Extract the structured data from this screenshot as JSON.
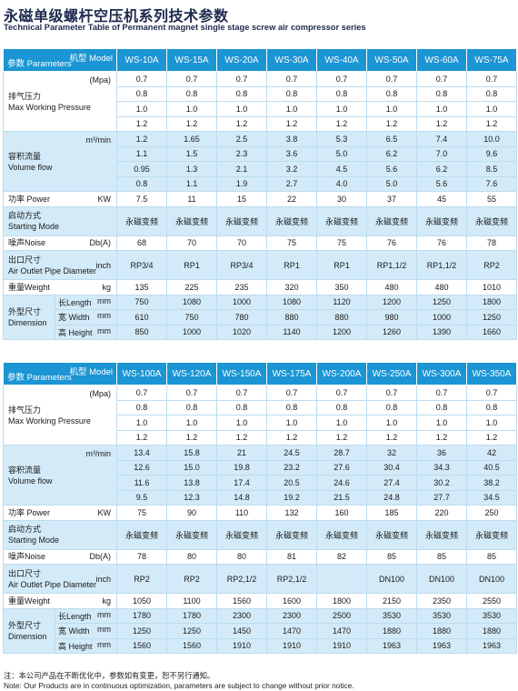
{
  "header": {
    "title": "永磁单级螺杆空压机系列技术参数",
    "subtitle": "Technical Parameter Table of Permanent magnet single stage screw air compressor series"
  },
  "tables": [
    {
      "model_label": "机型 Model",
      "param_label": "参数 Parameters",
      "models": [
        "WS-10A",
        "WS-15A",
        "WS-20A",
        "WS-30A",
        "WS-40A",
        "WS-50A",
        "WS-60A",
        "WS-75A"
      ],
      "groups": [
        {
          "label": [
            "排气压力",
            "Max Working Pressure"
          ],
          "unit": "(Mpa)",
          "rows": [
            [
              "0.7",
              "0.7",
              "0.7",
              "0.7",
              "0.7",
              "0.7",
              "0.7",
              "0.7"
            ],
            [
              "0.8",
              "0.8",
              "0.8",
              "0.8",
              "0.8",
              "0.8",
              "0.8",
              "0.8"
            ],
            [
              "1.0",
              "1.0",
              "1.0",
              "1.0",
              "1.0",
              "1.0",
              "1.0",
              "1.0"
            ],
            [
              "1.2",
              "1.2",
              "1.2",
              "1.2",
              "1.2",
              "1.2",
              "1.2",
              "1.2"
            ]
          ]
        },
        {
          "label": [
            "容积流量",
            "Volume flow"
          ],
          "unit": "m³/min",
          "rows": [
            [
              "1.2",
              "1.65",
              "2.5",
              "3.8",
              "5.3",
              "6.5",
              "7.4",
              "10.0"
            ],
            [
              "1.1",
              "1.5",
              "2.3",
              "3.6",
              "5.0",
              "6.2",
              "7.0",
              "9.6"
            ],
            [
              "0.95",
              "1.3",
              "2.1",
              "3.2",
              "4.5",
              "5.6",
              "6.2",
              "8.5"
            ],
            [
              "0.8",
              "1.1",
              "1.9",
              "2.7",
              "4.0",
              "5.0",
              "5.6",
              "7.6"
            ]
          ]
        },
        {
          "label": [
            "功率 Power"
          ],
          "unit": "KW",
          "rows": [
            [
              "7.5",
              "11",
              "15",
              "22",
              "30",
              "37",
              "45",
              "55"
            ]
          ]
        },
        {
          "label": [
            "启动方式",
            "Starting Mode"
          ],
          "rows": [
            [
              "永磁变频",
              "永磁变频",
              "永磁变频",
              "永磁变频",
              "永磁变频",
              "永磁变频",
              "永磁变频",
              "永磁变频"
            ]
          ]
        },
        {
          "label": [
            "噪声Noise"
          ],
          "unit": "Db(A)",
          "rows": [
            [
              "68",
              "70",
              "70",
              "75",
              "75",
              "76",
              "76",
              "78"
            ]
          ]
        },
        {
          "label": [
            "出口尺寸",
            "Air Outlet Pipe Diameter"
          ],
          "unit": "inch",
          "rows": [
            [
              "RP3/4",
              "RP1",
              "RP3/4",
              "RP1",
              "RP1",
              "RP1,1/2",
              "RP1,1/2",
              "RP2"
            ]
          ]
        },
        {
          "label": [
            "重量Weight"
          ],
          "unit": "kg",
          "rows": [
            [
              "135",
              "225",
              "235",
              "320",
              "350",
              "480",
              "480",
              "1010"
            ]
          ]
        },
        {
          "label": [
            "外型尺寸",
            "Dimension"
          ],
          "sub": [
            {
              "label": "长Length",
              "unit": "mm"
            },
            {
              "label": "宽 Width",
              "unit": "mm"
            },
            {
              "label": "高 Height",
              "unit": "mm"
            }
          ],
          "rows": [
            [
              "750",
              "1080",
              "1000",
              "1080",
              "1120",
              "1200",
              "1250",
              "1800"
            ],
            [
              "610",
              "750",
              "780",
              "880",
              "880",
              "980",
              "1000",
              "1250"
            ],
            [
              "850",
              "1000",
              "1020",
              "1140",
              "1200",
              "1260",
              "1390",
              "1660"
            ]
          ]
        }
      ]
    },
    {
      "model_label": "机型 Model",
      "param_label": "参数 Parameters",
      "models": [
        "WS-100A",
        "WS-120A",
        "WS-150A",
        "WS-175A",
        "WS-200A",
        "WS-250A",
        "WS-300A",
        "WS-350A"
      ],
      "groups": [
        {
          "label": [
            "排气压力",
            "Max Working Pressure"
          ],
          "unit": "(Mpa)",
          "rows": [
            [
              "0.7",
              "0.7",
              "0.7",
              "0.7",
              "0.7",
              "0.7",
              "0.7",
              "0.7"
            ],
            [
              "0.8",
              "0.8",
              "0.8",
              "0.8",
              "0.8",
              "0.8",
              "0.8",
              "0.8"
            ],
            [
              "1.0",
              "1.0",
              "1.0",
              "1.0",
              "1.0",
              "1.0",
              "1.0",
              "1.0"
            ],
            [
              "1.2",
              "1.2",
              "1.2",
              "1.2",
              "1.2",
              "1.2",
              "1.2",
              "1.2"
            ]
          ]
        },
        {
          "label": [
            "容积流量",
            "Volume flow"
          ],
          "unit": "m³/min",
          "rows": [
            [
              "13.4",
              "15.8",
              "21",
              "24.5",
              "28.7",
              "32",
              "36",
              "42"
            ],
            [
              "12.6",
              "15.0",
              "19.8",
              "23.2",
              "27.6",
              "30.4",
              "34.3",
              "40.5"
            ],
            [
              "11.6",
              "13.8",
              "17.4",
              "20.5",
              "24.6",
              "27.4",
              "30.2",
              "38.2"
            ],
            [
              "9.5",
              "12.3",
              "14.8",
              "19.2",
              "21.5",
              "24.8",
              "27.7",
              "34.5"
            ]
          ]
        },
        {
          "label": [
            "功率 Power"
          ],
          "unit": "KW",
          "rows": [
            [
              "75",
              "90",
              "110",
              "132",
              "160",
              "185",
              "220",
              "250"
            ]
          ]
        },
        {
          "label": [
            "启动方式",
            "Starting Mode"
          ],
          "rows": [
            [
              "永磁变频",
              "永磁变频",
              "永磁变频",
              "永磁变频",
              "永磁变频",
              "永磁变频",
              "永磁变频",
              "永磁变频"
            ]
          ]
        },
        {
          "label": [
            "噪声Noise"
          ],
          "unit": "Db(A)",
          "rows": [
            [
              "78",
              "80",
              "80",
              "81",
              "82",
              "85",
              "85",
              "85"
            ]
          ]
        },
        {
          "label": [
            "出口尺寸",
            "Air Outlet Pipe Diameter"
          ],
          "unit": "inch",
          "rows": [
            [
              "RP2",
              "RP2",
              "RP2,1/2",
              "RP2,1/2",
              null,
              "DN100",
              "DN100",
              "DN100"
            ]
          ]
        },
        {
          "label": [
            "重量Weight"
          ],
          "unit": "kg",
          "rows": [
            [
              "1050",
              "1100",
              "1560",
              "1600",
              "1800",
              "2150",
              "2350",
              "2550"
            ]
          ]
        },
        {
          "label": [
            "外型尺寸",
            "Dimension"
          ],
          "sub": [
            {
              "label": "长Length",
              "unit": "mm"
            },
            {
              "label": "宽 Width",
              "unit": "mm"
            },
            {
              "label": "高 Height",
              "unit": "mm"
            }
          ],
          "rows": [
            [
              "1780",
              "1780",
              "2300",
              "2300",
              "2500",
              "3530",
              "3530",
              "3530"
            ],
            [
              "1250",
              "1250",
              "1450",
              "1470",
              "1470",
              "1880",
              "1880",
              "1880"
            ],
            [
              "1560",
              "1560",
              "1910",
              "1910",
              "1910",
              "1963",
              "1963",
              "1963"
            ]
          ]
        }
      ]
    }
  ],
  "notes": [
    "注：本公司产品在不断优化中，参数如有变更，恕不另行通知。",
    "Note: Our Products are in continuous optimization, parameters are subject to change without prior notice."
  ]
}
